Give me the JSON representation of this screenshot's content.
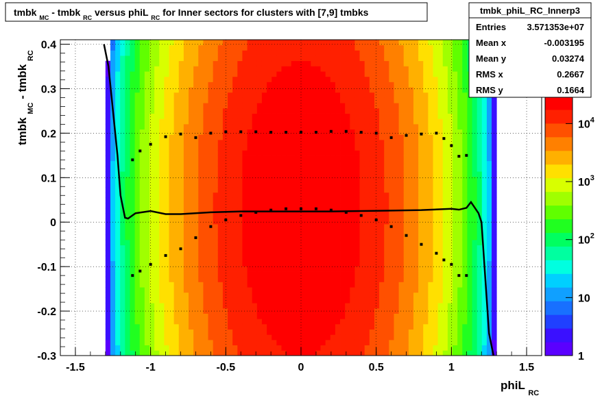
{
  "title": {
    "prefix": "tmbk",
    "sub1": "MC",
    "mid1": " - tmbk",
    "sub2": "RC",
    "mid2": " versus phiL",
    "sub3": "RC",
    "suffix": " for Inner sectors for clusters with [7,9] tmbks"
  },
  "stats_box": {
    "name": "tmbk_phiL_RC_Innerp3",
    "rows": [
      {
        "label": "Entries",
        "value": "3.571353e+07"
      },
      {
        "label": "Mean x",
        "value": "-0.003195"
      },
      {
        "label": "Mean y",
        "value": "0.03274"
      },
      {
        "label": "RMS x",
        "value": "0.2667"
      },
      {
        "label": "RMS y",
        "value": "0.1664"
      }
    ]
  },
  "xaxis_title": {
    "main": "phiL",
    "sub": "RC"
  },
  "yaxis_title": {
    "main1": "tmbk",
    "sub1": "MC",
    "main2": " - tmbk",
    "sub2": "RC"
  },
  "colorbar": {
    "labels": [
      {
        "base": "1",
        "exp": "",
        "value": 1
      },
      {
        "base": "10",
        "exp": "",
        "value": 10
      },
      {
        "base": "10",
        "exp": "2",
        "value": 100
      },
      {
        "base": "10",
        "exp": "3",
        "value": 1000
      },
      {
        "base": "10",
        "exp": "4",
        "value": 10000
      }
    ],
    "zlim": [
      1,
      30000
    ],
    "palette": [
      "#5a00ff",
      "#3a10ff",
      "#2040ff",
      "#1870ff",
      "#10a0ff",
      "#00d0ff",
      "#00ffe0",
      "#00ffa0",
      "#00ff60",
      "#20ff20",
      "#60ff00",
      "#a0ff00",
      "#d8ff00",
      "#ffe000",
      "#ffb000",
      "#ff8000",
      "#ff5000",
      "#ff2000",
      "#ff0000"
    ]
  },
  "chart_data": {
    "type": "heatmap",
    "title": "tmbk_MC - tmbk_RC versus phiL_RC for Inner sectors for clusters with [7,9] tmbks",
    "xlabel": "phiL_RC",
    "ylabel": "tmbk_MC - tmbk_RC",
    "xlim": [
      -1.6,
      1.6
    ],
    "ylim": [
      -0.3,
      0.41
    ],
    "xticks": [
      -1.5,
      -1,
      -0.5,
      0,
      0.5,
      1,
      1.5
    ],
    "xtick_labels": [
      "-1.5",
      "-1",
      "-0.5",
      "0",
      "0.5",
      "1",
      "1.5"
    ],
    "yticks": [
      -0.3,
      -0.2,
      -0.1,
      0,
      0.1,
      0.2,
      0.3,
      0.4
    ],
    "ytick_labels": [
      "-0.3",
      "-0.2",
      "-0.1",
      "0",
      "0.1",
      "0.2",
      "0.3",
      "0.4"
    ],
    "grid": true,
    "log_z": true,
    "density": {
      "x_extent": [
        -1.3,
        1.3
      ],
      "center_x": 0,
      "center_y": 0.03,
      "peak": 30000
    },
    "upper_band": {
      "x": [
        -1.12,
        -1.07,
        -1.0,
        -0.9,
        -0.8,
        -0.7,
        -0.6,
        -0.5,
        -0.4,
        -0.3,
        -0.2,
        -0.1,
        0.0,
        0.1,
        0.2,
        0.3,
        0.4,
        0.5,
        0.6,
        0.7,
        0.8,
        0.9,
        0.95,
        1.0,
        1.05,
        1.1
      ],
      "y": [
        0.14,
        0.16,
        0.175,
        0.192,
        0.198,
        0.19,
        0.2,
        0.203,
        0.203,
        0.203,
        0.202,
        0.202,
        0.202,
        0.202,
        0.204,
        0.204,
        0.202,
        0.2,
        0.19,
        0.195,
        0.198,
        0.2,
        0.188,
        0.172,
        0.148,
        0.15
      ]
    },
    "lower_band": {
      "x": [
        -1.12,
        -1.07,
        -1.0,
        -0.9,
        -0.8,
        -0.7,
        -0.6,
        -0.5,
        -0.4,
        -0.3,
        -0.2,
        -0.1,
        0.0,
        0.1,
        0.2,
        0.3,
        0.4,
        0.5,
        0.6,
        0.7,
        0.8,
        0.9,
        0.95,
        1.0,
        1.05,
        1.1
      ],
      "y": [
        -0.12,
        -0.11,
        -0.095,
        -0.075,
        -0.06,
        -0.035,
        -0.01,
        0.005,
        0.015,
        0.022,
        0.027,
        0.03,
        0.03,
        0.03,
        0.027,
        0.022,
        0.015,
        0.005,
        -0.01,
        -0.03,
        -0.05,
        -0.07,
        -0.085,
        -0.095,
        -0.12,
        -0.12
      ]
    },
    "mean_line": {
      "x": [
        -1.31,
        -1.28,
        -1.25,
        -1.22,
        -1.2,
        -1.17,
        -1.15,
        -1.1,
        -1.0,
        -0.9,
        -0.8,
        -0.6,
        -0.4,
        -0.2,
        0.0,
        0.2,
        0.4,
        0.6,
        0.8,
        1.0,
        1.05,
        1.1,
        1.13,
        1.15,
        1.18,
        1.2,
        1.22,
        1.25,
        1.28
      ],
      "y": [
        0.4,
        0.35,
        0.25,
        0.15,
        0.06,
        0.01,
        0.008,
        0.02,
        0.025,
        0.018,
        0.018,
        0.022,
        0.024,
        0.024,
        0.024,
        0.024,
        0.025,
        0.026,
        0.027,
        0.03,
        0.028,
        0.032,
        0.045,
        0.035,
        0.02,
        0.0,
        -0.1,
        -0.25,
        -0.3
      ]
    }
  }
}
